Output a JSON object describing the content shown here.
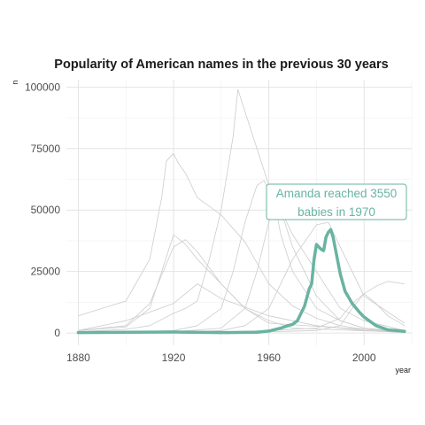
{
  "chart_data": {
    "type": "line",
    "title": "Popularity of American names in the previous 30 years",
    "xlabel": "year",
    "ylabel": "n",
    "xlim": [
      1875,
      2020
    ],
    "ylim": [
      -5000,
      103000
    ],
    "x_ticks": [
      1880,
      1920,
      1960,
      2000
    ],
    "x_tick_labels": [
      "1880",
      "1920",
      "1960",
      "2000"
    ],
    "y_ticks": [
      0,
      25000,
      50000,
      75000,
      100000
    ],
    "y_tick_labels": [
      "0",
      "25000",
      "50000",
      "75000",
      "100000"
    ],
    "grid": true,
    "legend": "none",
    "background_color": "#cccccc",
    "highlight_color": "#69b3a2",
    "annotation": {
      "lines": [
        "Amanda reached 3550",
        "babies in 1970"
      ],
      "x": 1970,
      "y": 55000
    },
    "series": [
      {
        "name": "Amanda",
        "highlight": true,
        "x": [
          1880,
          1900,
          1920,
          1940,
          1955,
          1960,
          1965,
          1968,
          1970,
          1972,
          1975,
          1977,
          1978,
          1979,
          1980,
          1982,
          1983,
          1984,
          1985,
          1986,
          1987,
          1988,
          1990,
          1992,
          1995,
          1998,
          2000,
          2005,
          2010,
          2017
        ],
        "values": [
          200,
          300,
          400,
          200,
          300,
          800,
          2000,
          3000,
          3550,
          5000,
          11000,
          18000,
          20000,
          30000,
          36000,
          34000,
          33500,
          39000,
          41000,
          42000,
          39000,
          34000,
          24000,
          17000,
          12000,
          8500,
          6500,
          3000,
          1300,
          700
        ]
      },
      {
        "x": [
          1880,
          1890,
          1900,
          1910,
          1915,
          1917,
          1920,
          1922,
          1925,
          1930,
          1940,
          1950,
          1960,
          1970,
          1980,
          1990,
          2000,
          2017
        ],
        "values": [
          7000,
          10000,
          13000,
          30000,
          55000,
          70000,
          73000,
          69000,
          65000,
          55000,
          48000,
          37000,
          20000,
          11000,
          6000,
          3000,
          1500,
          500
        ]
      },
      {
        "x": [
          1880,
          1900,
          1910,
          1920,
          1925,
          1930,
          1935,
          1940,
          1945,
          1947,
          1950,
          1955,
          1960,
          1970,
          1980,
          1990,
          2000,
          2017
        ],
        "values": [
          500,
          1500,
          3000,
          8000,
          10000,
          13000,
          30000,
          50000,
          80000,
          99000,
          90000,
          75000,
          60000,
          40000,
          25000,
          10000,
          5000,
          1000
        ]
      },
      {
        "x": [
          1880,
          1900,
          1910,
          1920,
          1925,
          1930,
          1940,
          1950,
          1960,
          1970,
          2017
        ],
        "values": [
          1000,
          3000,
          12000,
          35000,
          38000,
          33000,
          20000,
          10000,
          5000,
          2000,
          300
        ]
      },
      {
        "x": [
          1880,
          1900,
          1910,
          1915,
          1920,
          1925,
          1930,
          1940,
          1950,
          1960,
          2017
        ],
        "values": [
          1000,
          2500,
          10000,
          25000,
          40000,
          36000,
          30000,
          20000,
          10000,
          4000,
          400
        ]
      },
      {
        "x": [
          1880,
          1900,
          1920,
          1930,
          1940,
          1945,
          1950,
          1955,
          1958,
          1960,
          1962,
          1965,
          1970,
          1980,
          1990,
          2000,
          2017
        ],
        "values": [
          100,
          300,
          1000,
          3000,
          10000,
          25000,
          45000,
          60000,
          62000,
          58000,
          55000,
          40000,
          25000,
          10000,
          5000,
          2000,
          500
        ]
      },
      {
        "x": [
          1880,
          1920,
          1940,
          1950,
          1955,
          1960,
          1963,
          1965,
          1970,
          1980,
          1990,
          2000,
          2017
        ],
        "values": [
          0,
          500,
          2000,
          10000,
          25000,
          45000,
          55000,
          50000,
          35000,
          15000,
          5000,
          2000,
          500
        ]
      },
      {
        "x": [
          1880,
          1920,
          1940,
          1950,
          1960,
          1970,
          1980,
          1985,
          1990,
          2000,
          2017
        ],
        "values": [
          0,
          200,
          1000,
          3000,
          10000,
          30000,
          44000,
          45000,
          35000,
          15000,
          4000
        ]
      },
      {
        "x": [
          1880,
          1940,
          1960,
          1980,
          1990,
          1995,
          2000,
          2005,
          2010,
          2017
        ],
        "values": [
          0,
          0,
          500,
          1000,
          3000,
          10000,
          16000,
          19000,
          21000,
          20000
        ]
      },
      {
        "x": [
          1880,
          1900,
          1920,
          1930,
          1940,
          1960,
          1980,
          2000,
          2017
        ],
        "values": [
          1000,
          5000,
          12000,
          20000,
          14000,
          7000,
          3000,
          1000,
          300
        ]
      },
      {
        "x": [
          1880,
          1920,
          1940,
          1960,
          1980,
          1990,
          1995,
          2000,
          2005,
          2010,
          2017
        ],
        "values": [
          0,
          200,
          500,
          1000,
          2000,
          6000,
          12000,
          16000,
          12000,
          7000,
          3000
        ]
      }
    ]
  }
}
